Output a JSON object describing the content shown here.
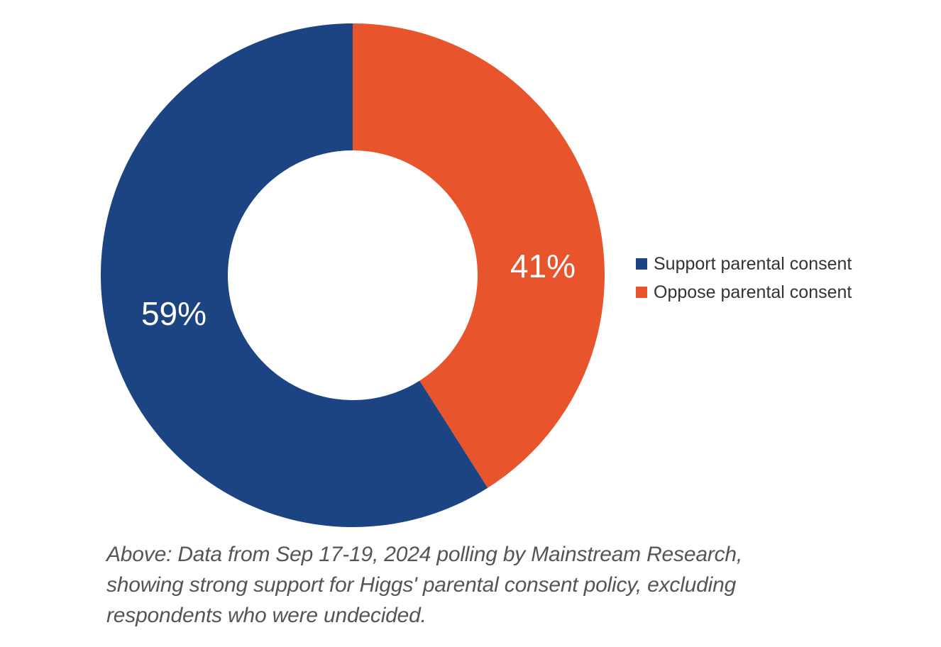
{
  "chart_data": {
    "type": "pie",
    "variant": "donut",
    "title": "",
    "categories": [
      "Support parental consent",
      "Oppose parental consent"
    ],
    "values": [
      59,
      41
    ],
    "labels": [
      "59%",
      "41%"
    ],
    "colors": [
      "#1c4482",
      "#e8552c"
    ],
    "start_angle_deg": 0,
    "direction": "counterclockwise-from-top for support; oppose clockwise from top",
    "legend_position": "right"
  },
  "legend": {
    "items": [
      {
        "label": "Support parental consent",
        "color": "#1c4482"
      },
      {
        "label": "Oppose parental consent",
        "color": "#e8552c"
      }
    ]
  },
  "caption": {
    "lines": [
      "Above: Data from Sep 17-19, 2024 polling by Mainstream Research,",
      "showing strong support for Higgs' parental consent policy, excluding",
      "respondents who were undecided."
    ]
  }
}
